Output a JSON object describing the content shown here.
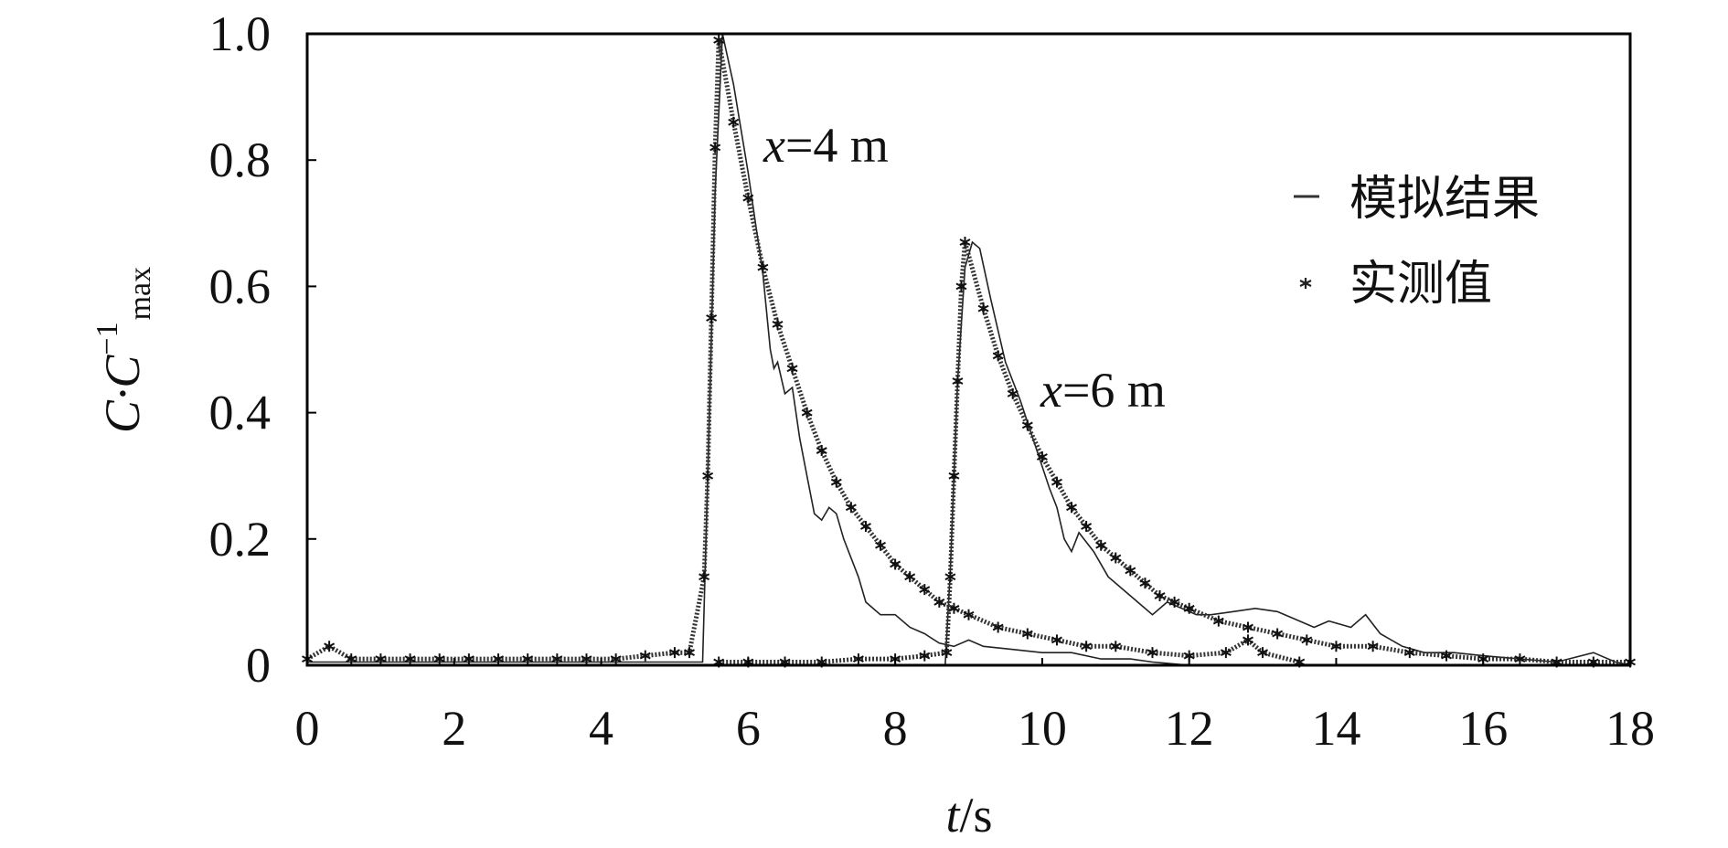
{
  "chart_data": {
    "type": "line",
    "xlabel_italic": "t",
    "xlabel_unit": "/s",
    "ylabel_main": "C·C",
    "ylabel_sup": "−1",
    "ylabel_sub": "max",
    "xlim": [
      0,
      18
    ],
    "ylim": [
      0,
      1.0
    ],
    "xticks": [
      "0",
      "2",
      "4",
      "6",
      "8",
      "10",
      "12",
      "14",
      "16",
      "18"
    ],
    "yticks": [
      "0",
      "0.2",
      "0.4",
      "0.6",
      "0.8",
      "1.0"
    ],
    "grid": false,
    "legend_position": "top-right",
    "legend": [
      {
        "label": "模拟结果",
        "marker": "line"
      },
      {
        "label": "实测值",
        "marker": "star"
      }
    ],
    "annotations": [
      {
        "italic": "x",
        "text": "=4 m",
        "at": [
          6.3,
          0.79
        ]
      },
      {
        "italic": "x",
        "text": "=6 m",
        "at": [
          9.8,
          0.4
        ]
      }
    ],
    "series": [
      {
        "group": "x=4 m",
        "kind": "simulated",
        "points": [
          [
            0,
            0.005
          ],
          [
            5.38,
            0.005
          ],
          [
            5.45,
            0.3
          ],
          [
            5.55,
            0.75
          ],
          [
            5.65,
            1.0
          ],
          [
            5.8,
            0.92
          ],
          [
            6.0,
            0.78
          ],
          [
            6.2,
            0.62
          ],
          [
            6.3,
            0.5
          ],
          [
            6.35,
            0.47
          ],
          [
            6.4,
            0.48
          ],
          [
            6.5,
            0.43
          ],
          [
            6.6,
            0.44
          ],
          [
            6.7,
            0.36
          ],
          [
            6.8,
            0.3
          ],
          [
            6.9,
            0.24
          ],
          [
            7.0,
            0.23
          ],
          [
            7.1,
            0.25
          ],
          [
            7.2,
            0.24
          ],
          [
            7.3,
            0.2
          ],
          [
            7.5,
            0.14
          ],
          [
            7.6,
            0.1
          ],
          [
            7.8,
            0.08
          ],
          [
            8.0,
            0.08
          ],
          [
            8.2,
            0.06
          ],
          [
            8.4,
            0.05
          ],
          [
            8.6,
            0.035
          ],
          [
            8.8,
            0.03
          ],
          [
            9.0,
            0.04
          ],
          [
            9.2,
            0.03
          ],
          [
            9.6,
            0.025
          ],
          [
            10,
            0.02
          ],
          [
            10.4,
            0.02
          ],
          [
            10.8,
            0.01
          ],
          [
            11.2,
            0.01
          ],
          [
            11.5,
            0.005
          ],
          [
            12,
            0.0
          ],
          [
            18,
            0.0
          ]
        ]
      },
      {
        "group": "x=6 m",
        "kind": "simulated",
        "points": [
          [
            8.68,
            0
          ],
          [
            8.75,
            0.15
          ],
          [
            8.85,
            0.45
          ],
          [
            8.95,
            0.63
          ],
          [
            9.05,
            0.67
          ],
          [
            9.15,
            0.66
          ],
          [
            9.3,
            0.58
          ],
          [
            9.5,
            0.48
          ],
          [
            9.7,
            0.42
          ],
          [
            9.9,
            0.35
          ],
          [
            10.1,
            0.28
          ],
          [
            10.2,
            0.25
          ],
          [
            10.3,
            0.2
          ],
          [
            10.4,
            0.18
          ],
          [
            10.5,
            0.21
          ],
          [
            10.7,
            0.18
          ],
          [
            10.9,
            0.14
          ],
          [
            11.1,
            0.12
          ],
          [
            11.3,
            0.1
          ],
          [
            11.5,
            0.08
          ],
          [
            11.7,
            0.1
          ],
          [
            11.9,
            0.09
          ],
          [
            12.1,
            0.08
          ],
          [
            12.3,
            0.08
          ],
          [
            12.6,
            0.085
          ],
          [
            12.9,
            0.09
          ],
          [
            13.2,
            0.085
          ],
          [
            13.5,
            0.07
          ],
          [
            13.7,
            0.06
          ],
          [
            13.9,
            0.07
          ],
          [
            14.2,
            0.06
          ],
          [
            14.4,
            0.08
          ],
          [
            14.6,
            0.05
          ],
          [
            14.9,
            0.03
          ],
          [
            15.2,
            0.02
          ],
          [
            15.6,
            0.02
          ],
          [
            16.0,
            0.015
          ],
          [
            16.5,
            0.01
          ],
          [
            17.0,
            0.005
          ],
          [
            17.5,
            0.02
          ],
          [
            17.8,
            0.005
          ],
          [
            18,
            0
          ]
        ]
      },
      {
        "group": "x=4 m",
        "kind": "measured",
        "points": [
          [
            0,
            0.01
          ],
          [
            0.3,
            0.03
          ],
          [
            0.6,
            0.01
          ],
          [
            1.0,
            0.01
          ],
          [
            1.4,
            0.01
          ],
          [
            1.8,
            0.01
          ],
          [
            2.2,
            0.01
          ],
          [
            2.6,
            0.01
          ],
          [
            3.0,
            0.01
          ],
          [
            3.4,
            0.01
          ],
          [
            3.8,
            0.01
          ],
          [
            4.2,
            0.01
          ],
          [
            4.6,
            0.015
          ],
          [
            5.0,
            0.02
          ],
          [
            5.2,
            0.02
          ],
          [
            5.4,
            0.14
          ],
          [
            5.45,
            0.3
          ],
          [
            5.5,
            0.55
          ],
          [
            5.55,
            0.82
          ],
          [
            5.6,
            0.99
          ],
          [
            5.8,
            0.86
          ],
          [
            6.0,
            0.74
          ],
          [
            6.2,
            0.63
          ],
          [
            6.4,
            0.54
          ],
          [
            6.6,
            0.47
          ],
          [
            6.8,
            0.4
          ],
          [
            7.0,
            0.34
          ],
          [
            7.2,
            0.29
          ],
          [
            7.4,
            0.25
          ],
          [
            7.6,
            0.22
          ],
          [
            7.8,
            0.19
          ],
          [
            8.0,
            0.16
          ],
          [
            8.2,
            0.14
          ],
          [
            8.4,
            0.12
          ],
          [
            8.6,
            0.1
          ],
          [
            8.8,
            0.09
          ],
          [
            9.0,
            0.08
          ],
          [
            9.4,
            0.06
          ],
          [
            9.8,
            0.05
          ],
          [
            10.2,
            0.04
          ],
          [
            10.6,
            0.03
          ],
          [
            11.0,
            0.03
          ],
          [
            11.5,
            0.02
          ],
          [
            12.0,
            0.015
          ],
          [
            12.5,
            0.02
          ],
          [
            12.8,
            0.04
          ],
          [
            13.0,
            0.02
          ],
          [
            13.5,
            0.005
          ]
        ]
      },
      {
        "group": "x=6 m",
        "kind": "measured",
        "points": [
          [
            5.6,
            0.005
          ],
          [
            6.0,
            0.005
          ],
          [
            6.5,
            0.005
          ],
          [
            7.0,
            0.005
          ],
          [
            7.5,
            0.01
          ],
          [
            8.0,
            0.01
          ],
          [
            8.4,
            0.015
          ],
          [
            8.7,
            0.02
          ],
          [
            8.75,
            0.14
          ],
          [
            8.8,
            0.3
          ],
          [
            8.85,
            0.45
          ],
          [
            8.9,
            0.6
          ],
          [
            8.95,
            0.67
          ],
          [
            9.2,
            0.565
          ],
          [
            9.4,
            0.49
          ],
          [
            9.6,
            0.43
          ],
          [
            9.8,
            0.38
          ],
          [
            10.0,
            0.33
          ],
          [
            10.2,
            0.29
          ],
          [
            10.4,
            0.25
          ],
          [
            10.6,
            0.22
          ],
          [
            10.8,
            0.19
          ],
          [
            11.0,
            0.17
          ],
          [
            11.2,
            0.15
          ],
          [
            11.4,
            0.13
          ],
          [
            11.6,
            0.11
          ],
          [
            11.8,
            0.1
          ],
          [
            12.0,
            0.09
          ],
          [
            12.4,
            0.07
          ],
          [
            12.8,
            0.06
          ],
          [
            13.2,
            0.05
          ],
          [
            13.6,
            0.04
          ],
          [
            14.0,
            0.03
          ],
          [
            14.5,
            0.03
          ],
          [
            15.0,
            0.02
          ],
          [
            15.5,
            0.015
          ],
          [
            16.0,
            0.01
          ],
          [
            16.5,
            0.01
          ],
          [
            17.0,
            0.005
          ],
          [
            17.5,
            0.005
          ],
          [
            18.0,
            0.005
          ]
        ]
      }
    ]
  }
}
